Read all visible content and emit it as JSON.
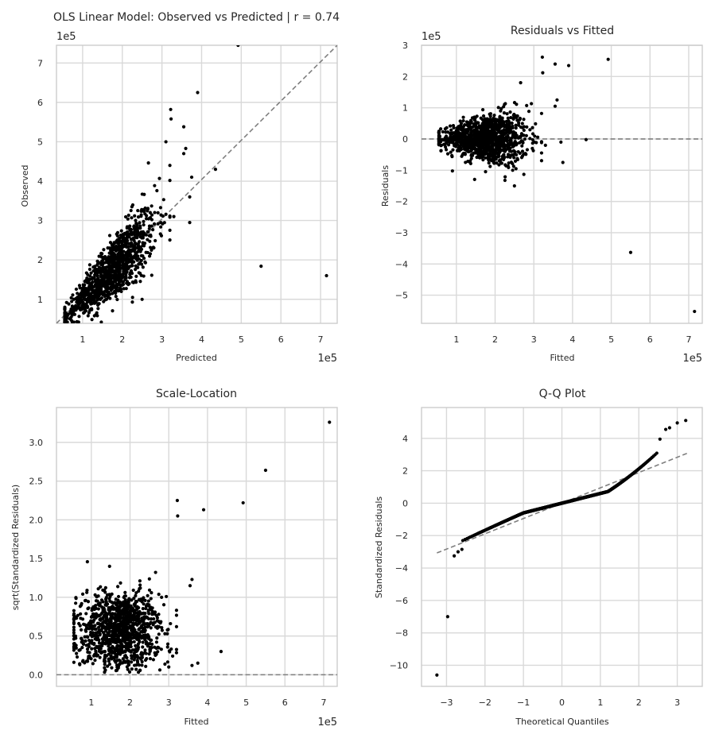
{
  "colors": {
    "point": "#000000",
    "reference_line": "#7f7f7f",
    "grid": "#d9d9d9",
    "background": "#ffffff"
  },
  "chart_data": [
    {
      "type": "scatter",
      "title": "OLS Linear Model: Observed vs Predicted | r = 0.74",
      "xlabel": "Predicted",
      "ylabel": "Observed",
      "x_offset_label": "1e5",
      "y_offset_label": "1e5",
      "xlim": [
        0.34,
        7.42
      ],
      "ylim": [
        0.39,
        7.45
      ],
      "xticks": [
        1,
        2,
        3,
        4,
        5,
        6,
        7
      ],
      "xtick_labels": [
        "1",
        "2",
        "3",
        "4",
        "5",
        "6",
        "7"
      ],
      "yticks": [
        1,
        2,
        3,
        4,
        5,
        6,
        7
      ],
      "ytick_labels": [
        "1",
        "2",
        "3",
        "4",
        "5",
        "6",
        "7"
      ],
      "grid": true,
      "reference_line": {
        "style": "dashed",
        "points": [
          [
            0.34,
            0.39
          ],
          [
            7.42,
            7.45
          ]
        ]
      },
      "points": [
        [
          4.92,
          7.45
        ],
        [
          7.15,
          1.6
        ],
        [
          5.5,
          1.84
        ],
        [
          3.9,
          6.25
        ],
        [
          3.22,
          5.82
        ],
        [
          3.23,
          5.58
        ],
        [
          3.55,
          5.38
        ],
        [
          3.6,
          4.83
        ],
        [
          3.55,
          4.7
        ],
        [
          4.35,
          4.3
        ],
        [
          3.1,
          5.0
        ],
        [
          3.75,
          4.1
        ],
        [
          3.2,
          4.4
        ],
        [
          3.7,
          3.6
        ],
        [
          3.7,
          2.95
        ],
        [
          3.3,
          3.1
        ]
      ],
      "cloud": {
        "n": 1200,
        "x_range": [
          0.5,
          3.2
        ],
        "model": "observed ≈ predicted, heteroscedastic",
        "y_range": [
          0.4,
          4.4
        ]
      }
    },
    {
      "type": "scatter",
      "title": "Residuals vs Fitted",
      "xlabel": "Fitted",
      "ylabel": "Residuals",
      "x_offset_label": "1e5",
      "y_offset_label": "1e5",
      "xlim": [
        0.1,
        7.35
      ],
      "ylim": [
        -5.9,
        3.0
      ],
      "xticks": [
        1,
        2,
        3,
        4,
        5,
        6,
        7
      ],
      "xtick_labels": [
        "1",
        "2",
        "3",
        "4",
        "5",
        "6",
        "7"
      ],
      "yticks": [
        -5,
        -4,
        -3,
        -2,
        -1,
        0,
        1,
        2,
        3
      ],
      "ytick_labels": [
        "−5",
        "−4",
        "−3",
        "−2",
        "−1",
        "0",
        "1",
        "2",
        "3"
      ],
      "grid": true,
      "reference_line": {
        "style": "dashed",
        "y": 0
      },
      "points": [
        [
          7.15,
          -5.52
        ],
        [
          5.5,
          -3.63
        ],
        [
          4.92,
          2.55
        ],
        [
          3.22,
          2.62
        ],
        [
          3.9,
          2.35
        ],
        [
          3.55,
          2.4
        ],
        [
          3.23,
          2.12
        ],
        [
          3.6,
          1.25
        ],
        [
          3.55,
          1.05
        ],
        [
          4.35,
          -0.02
        ],
        [
          3.75,
          -0.75
        ],
        [
          3.7,
          -0.1
        ],
        [
          3.3,
          -0.2
        ]
      ],
      "cloud": {
        "n": 1200,
        "x_range": [
          0.5,
          3.2
        ],
        "y_range": [
          -1.7,
          2.0
        ]
      }
    },
    {
      "type": "scatter",
      "title": "Scale-Location",
      "xlabel": "Fitted",
      "ylabel": "sqrt(Standardized Residuals)",
      "x_offset_label": "1e5",
      "xlim": [
        0.1,
        7.35
      ],
      "ylim": [
        -0.15,
        3.45
      ],
      "xticks": [
        1,
        2,
        3,
        4,
        5,
        6,
        7
      ],
      "xtick_labels": [
        "1",
        "2",
        "3",
        "4",
        "5",
        "6",
        "7"
      ],
      "yticks": [
        0,
        0.5,
        1,
        1.5,
        2,
        2.5,
        3
      ],
      "ytick_labels": [
        "0.0",
        "0.5",
        "1.0",
        "1.5",
        "2.0",
        "2.5",
        "3.0"
      ],
      "grid": true,
      "reference_line": {
        "style": "dashed",
        "y": 0
      },
      "points": [
        [
          7.15,
          3.26
        ],
        [
          5.5,
          2.64
        ],
        [
          4.92,
          2.22
        ],
        [
          3.22,
          2.25
        ],
        [
          3.9,
          2.13
        ],
        [
          3.23,
          2.05
        ],
        [
          3.6,
          1.23
        ],
        [
          3.55,
          1.15
        ],
        [
          4.35,
          0.3
        ],
        [
          3.75,
          0.15
        ],
        [
          3.6,
          0.12
        ],
        [
          3.0,
          0.1
        ]
      ],
      "cloud": {
        "n": 1200,
        "x_range": [
          0.5,
          3.2
        ],
        "y_range": [
          0.0,
          2.0
        ]
      }
    },
    {
      "type": "scatter",
      "title": "Q-Q Plot",
      "xlabel": "Theoretical Quantiles",
      "ylabel": "Standardized Residuals",
      "xlim": [
        -3.65,
        3.65
      ],
      "ylim": [
        -11.3,
        5.9
      ],
      "xticks": [
        -3,
        -2,
        -1,
        0,
        1,
        2,
        3
      ],
      "xtick_labels": [
        "−3",
        "−2",
        "−1",
        "0",
        "1",
        "2",
        "3"
      ],
      "yticks": [
        -10,
        -8,
        -6,
        -4,
        -2,
        0,
        2,
        4
      ],
      "ytick_labels": [
        "−10",
        "−8",
        "−6",
        "−4",
        "−2",
        "0",
        "2",
        "4"
      ],
      "grid": true,
      "reference_line": {
        "style": "dashed",
        "points": [
          [
            -3.25,
            -3.07
          ],
          [
            3.25,
            3.07
          ]
        ]
      },
      "points": [
        [
          -3.25,
          -10.6
        ],
        [
          -2.97,
          -7.0
        ],
        [
          -2.8,
          -3.25
        ],
        [
          -2.7,
          -3.0
        ],
        [
          -2.6,
          -2.85
        ],
        [
          3.22,
          5.1
        ],
        [
          3.0,
          4.95
        ],
        [
          2.8,
          4.65
        ],
        [
          2.7,
          4.55
        ],
        [
          2.55,
          3.95
        ]
      ],
      "quantile_curve": {
        "n": 1200,
        "x_range": [
          -2.6,
          2.5
        ]
      }
    }
  ]
}
